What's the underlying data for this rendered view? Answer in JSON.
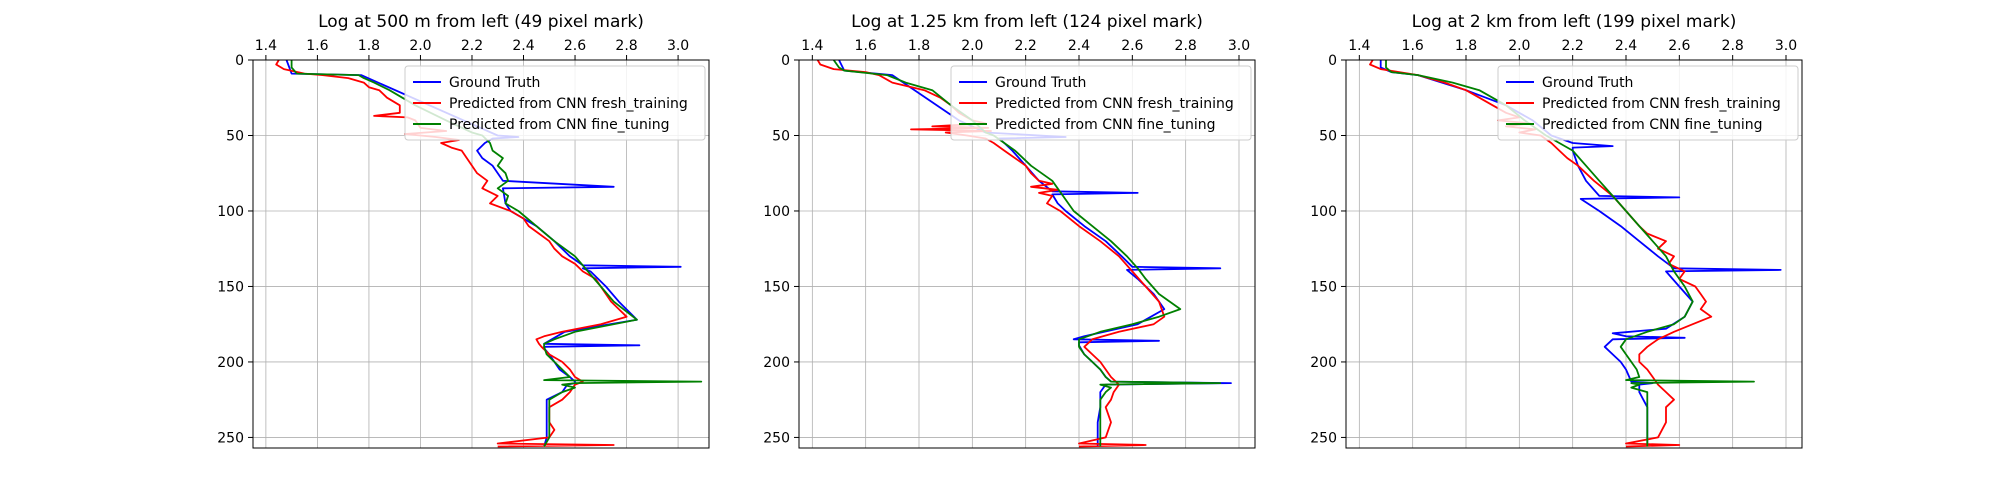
{
  "series_style": {
    "Ground Truth": "#0000ff",
    "Predicted from CNN fresh_training": "#ff0000",
    "Predicted from CNN fine_tuning": "#008000"
  },
  "legend_labels": [
    "Ground Truth",
    "Predicted from CNN fresh_training",
    "Predicted from CNN fine_tuning"
  ],
  "chart_data": [
    {
      "type": "line",
      "title": "Log at 500 m from left (49 pixel mark)",
      "xlabel": "",
      "ylabel": "",
      "xlim": [
        1.35,
        3.12
      ],
      "ylim": [
        257,
        0
      ],
      "x_ticks": [
        1.4,
        1.6,
        1.8,
        2.0,
        2.2,
        2.4,
        2.6,
        2.8,
        3.0
      ],
      "y_ticks": [
        0,
        50,
        100,
        150,
        200,
        250
      ],
      "grid": true,
      "legend": "top-right",
      "series": [
        {
          "name": "Ground Truth",
          "y": [
            0,
            9,
            10,
            50,
            51,
            52,
            55,
            60,
            65,
            70,
            80,
            84,
            85,
            95,
            100,
            110,
            120,
            130,
            136,
            137,
            138,
            140,
            150,
            160,
            172,
            180,
            188,
            189,
            190,
            191,
            195,
            205,
            210,
            213,
            214,
            215,
            220,
            225,
            230,
            240,
            250,
            256
          ],
          "x": [
            1.48,
            1.5,
            1.77,
            2.3,
            2.38,
            2.28,
            2.25,
            2.22,
            2.24,
            2.28,
            2.32,
            2.75,
            2.32,
            2.33,
            2.35,
            2.45,
            2.52,
            2.58,
            2.63,
            3.01,
            2.63,
            2.66,
            2.72,
            2.77,
            2.84,
            2.56,
            2.48,
            2.85,
            2.48,
            2.48,
            2.5,
            2.54,
            2.58,
            2.6,
            2.6,
            2.57,
            2.55,
            2.49,
            2.49,
            2.49,
            2.49,
            2.48
          ]
        },
        {
          "name": "Predicted from CNN fresh_training",
          "y": [
            0,
            3,
            6,
            9,
            10,
            12,
            15,
            18,
            20,
            25,
            30,
            35,
            37,
            38,
            40,
            45,
            47,
            49,
            51,
            53,
            55,
            58,
            60,
            65,
            70,
            75,
            80,
            85,
            90,
            95,
            100,
            105,
            110,
            115,
            120,
            125,
            130,
            135,
            140,
            145,
            150,
            155,
            160,
            165,
            170,
            175,
            180,
            183,
            185,
            188,
            190,
            195,
            200,
            205,
            210,
            213,
            215,
            220,
            225,
            230,
            240,
            245,
            250,
            254,
            255,
            256
          ],
          "x": [
            1.45,
            1.44,
            1.47,
            1.55,
            1.62,
            1.72,
            1.78,
            1.8,
            1.84,
            1.87,
            1.92,
            1.92,
            1.82,
            1.95,
            1.98,
            2.0,
            2.1,
            1.94,
            2.06,
            2.15,
            2.08,
            2.12,
            2.16,
            2.18,
            2.2,
            2.22,
            2.26,
            2.24,
            2.3,
            2.27,
            2.35,
            2.4,
            2.42,
            2.46,
            2.5,
            2.52,
            2.55,
            2.6,
            2.63,
            2.68,
            2.7,
            2.72,
            2.74,
            2.77,
            2.8,
            2.7,
            2.55,
            2.48,
            2.45,
            2.46,
            2.47,
            2.5,
            2.55,
            2.58,
            2.6,
            2.63,
            2.6,
            2.58,
            2.55,
            2.5,
            2.5,
            2.52,
            2.5,
            2.3,
            2.75,
            2.3
          ]
        },
        {
          "name": "Predicted from CNN fine_tuning",
          "y": [
            0,
            5,
            9,
            10,
            12,
            15,
            20,
            30,
            40,
            48,
            50,
            55,
            60,
            65,
            70,
            75,
            80,
            85,
            90,
            95,
            100,
            110,
            120,
            130,
            136,
            140,
            150,
            160,
            172,
            180,
            185,
            188,
            190,
            195,
            200,
            205,
            210,
            212,
            213,
            214,
            215,
            217,
            220,
            225,
            230,
            240,
            250,
            256
          ],
          "x": [
            1.5,
            1.5,
            1.52,
            1.76,
            1.78,
            1.82,
            1.88,
            1.98,
            2.1,
            2.2,
            2.24,
            2.27,
            2.28,
            2.32,
            2.3,
            2.33,
            2.34,
            2.3,
            2.34,
            2.33,
            2.38,
            2.45,
            2.52,
            2.6,
            2.63,
            2.65,
            2.7,
            2.75,
            2.84,
            2.6,
            2.52,
            2.48,
            2.48,
            2.49,
            2.52,
            2.55,
            2.58,
            2.48,
            3.09,
            2.6,
            2.55,
            2.6,
            2.55,
            2.5,
            2.5,
            2.5,
            2.5,
            2.48
          ]
        }
      ]
    },
    {
      "type": "line",
      "title": "Log at 1.25 km from left (124 pixel mark)",
      "xlabel": "",
      "ylabel": "",
      "xlim": [
        1.35,
        3.06
      ],
      "ylim": [
        257,
        0
      ],
      "x_ticks": [
        1.4,
        1.6,
        1.8,
        2.0,
        2.2,
        2.4,
        2.6,
        2.8,
        3.0
      ],
      "y_ticks": [
        0,
        50,
        100,
        150,
        200,
        250
      ],
      "grid": true,
      "legend": "top-right",
      "series": [
        {
          "name": "Ground Truth",
          "y": [
            0,
            7,
            10,
            40,
            48,
            51,
            52,
            55,
            60,
            70,
            80,
            87,
            88,
            89,
            95,
            100,
            110,
            120,
            130,
            137,
            138,
            139,
            145,
            155,
            165,
            175,
            183,
            185,
            186,
            187,
            189,
            195,
            200,
            205,
            210,
            213,
            214,
            215,
            220,
            230,
            240,
            250,
            256
          ],
          "x": [
            1.5,
            1.52,
            1.7,
            1.95,
            2.05,
            2.35,
            2.1,
            2.12,
            2.15,
            2.2,
            2.25,
            2.3,
            2.62,
            2.3,
            2.32,
            2.35,
            2.42,
            2.5,
            2.56,
            2.6,
            2.93,
            2.58,
            2.62,
            2.68,
            2.72,
            2.62,
            2.42,
            2.38,
            2.7,
            2.4,
            2.4,
            2.42,
            2.45,
            2.48,
            2.5,
            2.52,
            2.97,
            2.5,
            2.48,
            2.48,
            2.47,
            2.47,
            2.47
          ]
        },
        {
          "name": "Predicted from CNN fresh_training",
          "y": [
            0,
            3,
            6,
            8,
            10,
            15,
            20,
            25,
            30,
            35,
            40,
            42,
            44,
            45,
            46,
            47,
            48,
            50,
            52,
            55,
            60,
            65,
            70,
            75,
            80,
            82,
            84,
            86,
            88,
            90,
            95,
            100,
            110,
            120,
            130,
            140,
            150,
            160,
            170,
            175,
            180,
            185,
            190,
            195,
            200,
            205,
            210,
            215,
            220,
            225,
            230,
            240,
            250,
            254,
            255,
            256
          ],
          "x": [
            1.42,
            1.43,
            1.48,
            1.6,
            1.65,
            1.7,
            1.82,
            1.88,
            1.92,
            1.95,
            2.0,
            2.05,
            1.85,
            2.06,
            1.77,
            2.07,
            1.9,
            1.98,
            2.05,
            2.08,
            2.12,
            2.16,
            2.2,
            2.22,
            2.25,
            2.3,
            2.22,
            2.32,
            2.25,
            2.3,
            2.28,
            2.33,
            2.4,
            2.48,
            2.55,
            2.6,
            2.65,
            2.7,
            2.72,
            2.68,
            2.55,
            2.45,
            2.42,
            2.45,
            2.48,
            2.5,
            2.52,
            2.55,
            2.53,
            2.52,
            2.5,
            2.52,
            2.5,
            2.4,
            2.65,
            2.4
          ]
        },
        {
          "name": "Predicted from CNN fine_tuning",
          "y": [
            0,
            5,
            7,
            10,
            15,
            20,
            30,
            40,
            48,
            50,
            55,
            60,
            70,
            80,
            90,
            100,
            110,
            120,
            130,
            138,
            145,
            155,
            165,
            170,
            175,
            180,
            185,
            190,
            195,
            200,
            205,
            210,
            213,
            214,
            215,
            217,
            220,
            225,
            230,
            240,
            250,
            256
          ],
          "x": [
            1.48,
            1.5,
            1.52,
            1.68,
            1.75,
            1.85,
            1.92,
            2.0,
            2.05,
            2.08,
            2.12,
            2.16,
            2.22,
            2.3,
            2.34,
            2.38,
            2.45,
            2.52,
            2.58,
            2.62,
            2.65,
            2.7,
            2.78,
            2.7,
            2.6,
            2.48,
            2.4,
            2.4,
            2.42,
            2.45,
            2.48,
            2.5,
            2.52,
            2.93,
            2.48,
            2.52,
            2.5,
            2.48,
            2.48,
            2.48,
            2.48,
            2.48
          ]
        }
      ]
    },
    {
      "type": "line",
      "title": "Log at 2 km from left (199 pixel mark)",
      "xlabel": "",
      "ylabel": "",
      "xlim": [
        1.35,
        3.06
      ],
      "ylim": [
        257,
        0
      ],
      "x_ticks": [
        1.4,
        1.6,
        1.8,
        2.0,
        2.2,
        2.4,
        2.6,
        2.8,
        3.0
      ],
      "y_ticks": [
        0,
        50,
        100,
        150,
        200,
        250
      ],
      "grid": true,
      "legend": "top-right",
      "series": [
        {
          "name": "Ground Truth",
          "y": [
            0,
            5,
            8,
            10,
            20,
            30,
            40,
            50,
            55,
            57,
            58,
            60,
            70,
            80,
            90,
            91,
            92,
            100,
            110,
            120,
            130,
            138,
            139,
            140,
            150,
            160,
            170,
            178,
            181,
            183,
            184,
            185,
            190,
            195,
            200,
            205,
            213,
            214,
            215,
            220,
            230,
            240,
            250,
            256
          ],
          "x": [
            1.48,
            1.48,
            1.52,
            1.62,
            1.8,
            1.95,
            2.05,
            2.12,
            2.2,
            2.35,
            2.2,
            2.2,
            2.22,
            2.25,
            2.3,
            2.6,
            2.23,
            2.3,
            2.38,
            2.45,
            2.52,
            2.58,
            2.98,
            2.55,
            2.6,
            2.65,
            2.62,
            2.55,
            2.35,
            2.4,
            2.62,
            2.35,
            2.32,
            2.35,
            2.38,
            2.4,
            2.42,
            2.5,
            2.45,
            2.45,
            2.48,
            2.48,
            2.48,
            2.48
          ]
        },
        {
          "name": "Predicted from CNN fresh_training",
          "y": [
            0,
            3,
            6,
            8,
            10,
            15,
            20,
            25,
            30,
            35,
            38,
            40,
            42,
            44,
            46,
            48,
            50,
            55,
            60,
            65,
            70,
            80,
            90,
            100,
            110,
            115,
            120,
            125,
            130,
            135,
            140,
            145,
            150,
            155,
            160,
            165,
            170,
            175,
            180,
            185,
            190,
            195,
            200,
            205,
            210,
            215,
            220,
            225,
            230,
            240,
            250,
            254,
            255,
            256
          ],
          "x": [
            1.45,
            1.44,
            1.48,
            1.55,
            1.62,
            1.72,
            1.8,
            1.85,
            1.9,
            1.95,
            2.0,
            1.92,
            2.04,
            1.95,
            2.06,
            2.0,
            2.08,
            2.12,
            2.15,
            2.18,
            2.22,
            2.28,
            2.35,
            2.4,
            2.45,
            2.48,
            2.55,
            2.52,
            2.58,
            2.56,
            2.62,
            2.6,
            2.66,
            2.68,
            2.7,
            2.68,
            2.72,
            2.65,
            2.58,
            2.52,
            2.48,
            2.45,
            2.45,
            2.48,
            2.5,
            2.52,
            2.55,
            2.58,
            2.55,
            2.55,
            2.52,
            2.4,
            2.6,
            2.4
          ]
        },
        {
          "name": "Predicted from CNN fine_tuning",
          "y": [
            0,
            5,
            8,
            10,
            15,
            20,
            30,
            40,
            50,
            55,
            60,
            70,
            80,
            90,
            100,
            110,
            120,
            130,
            140,
            150,
            160,
            170,
            175,
            180,
            185,
            190,
            195,
            200,
            205,
            210,
            212,
            213,
            214,
            215,
            217,
            220,
            225,
            230,
            240,
            250,
            256
          ],
          "x": [
            1.5,
            1.5,
            1.52,
            1.62,
            1.75,
            1.85,
            1.95,
            2.02,
            2.1,
            2.15,
            2.2,
            2.25,
            2.3,
            2.35,
            2.4,
            2.45,
            2.5,
            2.55,
            2.58,
            2.62,
            2.65,
            2.62,
            2.58,
            2.48,
            2.4,
            2.38,
            2.4,
            2.42,
            2.44,
            2.45,
            2.4,
            2.88,
            2.42,
            2.45,
            2.42,
            2.48,
            2.48,
            2.48,
            2.48,
            2.48,
            2.48
          ]
        }
      ]
    }
  ]
}
